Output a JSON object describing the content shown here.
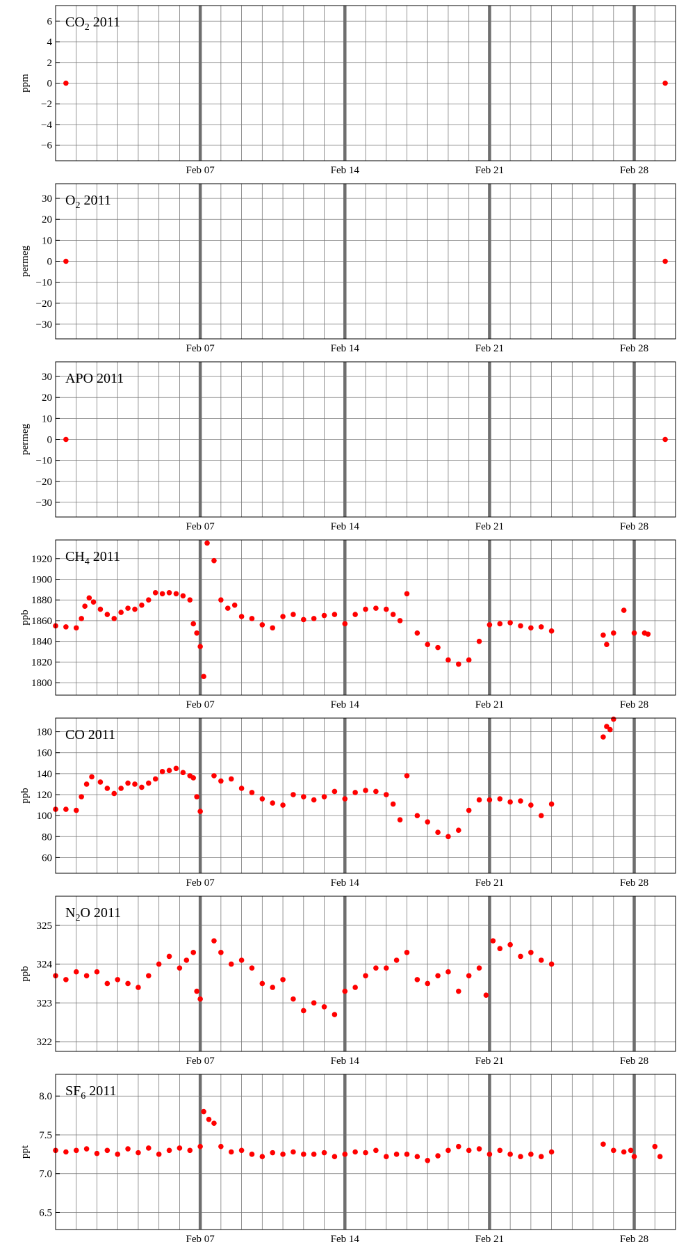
{
  "colors": {
    "point": "#ff0000",
    "errorbar": "#4040c0",
    "grid": "#7a7a7a",
    "week_line": "#6e6e6e",
    "frame": "#000000"
  },
  "chart_data": [
    {
      "type": "scatter",
      "title": "CO₂ 2011",
      "title_main": "CO",
      "title_sub": "2",
      "title_tail": " 2011",
      "ylabel": "ppm",
      "ylim": [
        -7.5,
        7.5
      ],
      "yticks": [
        -6,
        -4,
        -2,
        0,
        2,
        4,
        6
      ],
      "ytick_labels": [
        "−6",
        "−4",
        "−2",
        "0",
        "2",
        "4",
        "6"
      ],
      "xlim": [
        "2011-01-31",
        "2011-03-02"
      ],
      "xticks": [
        "2011-02-07",
        "2011-02-14",
        "2011-02-21",
        "2011-02-28"
      ],
      "xtick_labels": [
        "Feb 07",
        "Feb 14",
        "Feb 21",
        "Feb 28"
      ],
      "grid": true,
      "points": [
        {
          "x": "2011-01-31 12:00",
          "y": 0
        },
        {
          "x": "2011-03-01 12:00",
          "y": 0
        }
      ]
    },
    {
      "type": "scatter",
      "title": "O₂ 2011",
      "title_main": "O",
      "title_sub": "2",
      "title_tail": " 2011",
      "ylabel": "permeg",
      "ylim": [
        -37,
        37
      ],
      "yticks": [
        -30,
        -20,
        -10,
        0,
        10,
        20,
        30
      ],
      "ytick_labels": [
        "−30",
        "−20",
        "−10",
        "0",
        "10",
        "20",
        "30"
      ],
      "xlim": [
        "2011-01-31",
        "2011-03-02"
      ],
      "xticks": [
        "2011-02-07",
        "2011-02-14",
        "2011-02-21",
        "2011-02-28"
      ],
      "xtick_labels": [
        "Feb 07",
        "Feb 14",
        "Feb 21",
        "Feb 28"
      ],
      "grid": true,
      "points": [
        {
          "x": "2011-01-31 12:00",
          "y": 0
        },
        {
          "x": "2011-03-01 12:00",
          "y": 0
        }
      ]
    },
    {
      "type": "scatter",
      "title": "APO 2011",
      "title_main": "APO",
      "title_sub": "",
      "title_tail": " 2011",
      "ylabel": "permeg",
      "ylim": [
        -37,
        37
      ],
      "yticks": [
        -30,
        -20,
        -10,
        0,
        10,
        20,
        30
      ],
      "ytick_labels": [
        "−30",
        "−20",
        "−10",
        "0",
        "10",
        "20",
        "30"
      ],
      "xlim": [
        "2011-01-31",
        "2011-03-02"
      ],
      "xticks": [
        "2011-02-07",
        "2011-02-14",
        "2011-02-21",
        "2011-02-28"
      ],
      "xtick_labels": [
        "Feb 07",
        "Feb 14",
        "Feb 21",
        "Feb 28"
      ],
      "grid": true,
      "points": [
        {
          "x": "2011-01-31 12:00",
          "y": 0
        },
        {
          "x": "2011-03-01 12:00",
          "y": 0
        }
      ]
    },
    {
      "type": "scatter",
      "title": "CH₄ 2011",
      "title_main": "CH",
      "title_sub": "4",
      "title_tail": " 2011",
      "ylabel": "ppb",
      "ylim": [
        1788,
        1938
      ],
      "yticks": [
        1800,
        1820,
        1840,
        1860,
        1880,
        1900,
        1920
      ],
      "ytick_labels": [
        "1800",
        "1820",
        "1840",
        "1860",
        "1880",
        "1900",
        "1920"
      ],
      "xlim": [
        "2011-01-31",
        "2011-03-02"
      ],
      "xticks": [
        "2011-02-07",
        "2011-02-14",
        "2011-02-21",
        "2011-02-28"
      ],
      "xtick_labels": [
        "Feb 07",
        "Feb 14",
        "Feb 21",
        "Feb 28"
      ],
      "grid": true,
      "series": [
        {
          "x": [
            "2011-01-31 00:00",
            "2011-01-31 12:00",
            "2011-02-01 00:00",
            "2011-02-01 06:00",
            "2011-02-01 10:00",
            "2011-02-01 15:00",
            "2011-02-01 20:00",
            "2011-02-02 04:00",
            "2011-02-02 12:00",
            "2011-02-02 20:00",
            "2011-02-03 04:00",
            "2011-02-03 12:00",
            "2011-02-03 20:00",
            "2011-02-04 04:00",
            "2011-02-04 12:00",
            "2011-02-04 20:00",
            "2011-02-05 04:00",
            "2011-02-05 12:00",
            "2011-02-05 20:00",
            "2011-02-06 04:00",
            "2011-02-06 12:00",
            "2011-02-06 16:00",
            "2011-02-06 20:00",
            "2011-02-07 00:00",
            "2011-02-07 04:00",
            "2011-02-07 08:00",
            "2011-02-07 16:00",
            "2011-02-08 00:00",
            "2011-02-08 08:00",
            "2011-02-08 16:00",
            "2011-02-09 00:00",
            "2011-02-09 12:00",
            "2011-02-10 00:00",
            "2011-02-10 12:00",
            "2011-02-11 00:00",
            "2011-02-11 12:00",
            "2011-02-12 00:00",
            "2011-02-12 12:00",
            "2011-02-13 00:00",
            "2011-02-13 12:00",
            "2011-02-14 00:00",
            "2011-02-14 12:00",
            "2011-02-15 00:00",
            "2011-02-15 12:00",
            "2011-02-16 00:00",
            "2011-02-16 08:00",
            "2011-02-16 16:00",
            "2011-02-17 00:00",
            "2011-02-17 12:00",
            "2011-02-18 00:00",
            "2011-02-18 12:00",
            "2011-02-19 00:00",
            "2011-02-19 12:00",
            "2011-02-20 00:00",
            "2011-02-20 12:00",
            "2011-02-21 00:00",
            "2011-02-21 12:00",
            "2011-02-22 00:00",
            "2011-02-22 12:00",
            "2011-02-23 00:00",
            "2011-02-23 12:00",
            "2011-02-24 00:00",
            "2011-02-26 12:00",
            "2011-02-26 16:00",
            "2011-02-27 00:00",
            "2011-02-27 12:00",
            "2011-02-28 00:00",
            "2011-02-28 12:00",
            "2011-02-28 16:00"
          ],
          "y": [
            1855,
            1854,
            1853,
            1862,
            1874,
            1882,
            1878,
            1871,
            1866,
            1862,
            1868,
            1872,
            1871,
            1875,
            1880,
            1887,
            1886,
            1887,
            1886,
            1884,
            1880,
            1857,
            1848,
            1835,
            1806,
            1935,
            1918,
            1880,
            1872,
            1875,
            1864,
            1862,
            1856,
            1853,
            1864,
            1866,
            1861,
            1862,
            1865,
            1866,
            1857,
            1866,
            1871,
            1872,
            1871,
            1866,
            1860,
            1886,
            1848,
            1837,
            1834,
            1822,
            1818,
            1822,
            1840,
            1856,
            1857,
            1858,
            1855,
            1853,
            1854,
            1850,
            1846,
            1837,
            1848,
            1870,
            1848,
            1848,
            1847
          ]
        }
      ]
    },
    {
      "type": "scatter",
      "title": "CO 2011",
      "title_main": "CO",
      "title_sub": "",
      "title_tail": " 2011",
      "ylabel": "ppb",
      "ylim": [
        45,
        193
      ],
      "yticks": [
        60,
        80,
        100,
        120,
        140,
        160,
        180
      ],
      "ytick_labels": [
        "60",
        "80",
        "100",
        "120",
        "140",
        "160",
        "180"
      ],
      "xlim": [
        "2011-01-31",
        "2011-03-02"
      ],
      "xticks": [
        "2011-02-07",
        "2011-02-14",
        "2011-02-21",
        "2011-02-28"
      ],
      "xtick_labels": [
        "Feb 07",
        "Feb 14",
        "Feb 21",
        "Feb 28"
      ],
      "grid": true,
      "series": [
        {
          "x": [
            "2011-01-31 00:00",
            "2011-01-31 12:00",
            "2011-02-01 00:00",
            "2011-02-01 06:00",
            "2011-02-01 12:00",
            "2011-02-01 18:00",
            "2011-02-02 04:00",
            "2011-02-02 12:00",
            "2011-02-02 20:00",
            "2011-02-03 04:00",
            "2011-02-03 12:00",
            "2011-02-03 20:00",
            "2011-02-04 04:00",
            "2011-02-04 12:00",
            "2011-02-04 20:00",
            "2011-02-05 04:00",
            "2011-02-05 12:00",
            "2011-02-05 20:00",
            "2011-02-06 04:00",
            "2011-02-06 12:00",
            "2011-02-06 16:00",
            "2011-02-06 20:00",
            "2011-02-07 00:00",
            "2011-02-07 16:00",
            "2011-02-08 00:00",
            "2011-02-08 12:00",
            "2011-02-09 00:00",
            "2011-02-09 12:00",
            "2011-02-10 00:00",
            "2011-02-10 12:00",
            "2011-02-11 00:00",
            "2011-02-11 12:00",
            "2011-02-12 00:00",
            "2011-02-12 12:00",
            "2011-02-13 00:00",
            "2011-02-13 12:00",
            "2011-02-14 00:00",
            "2011-02-14 12:00",
            "2011-02-15 00:00",
            "2011-02-15 12:00",
            "2011-02-16 00:00",
            "2011-02-16 08:00",
            "2011-02-16 16:00",
            "2011-02-17 00:00",
            "2011-02-17 12:00",
            "2011-02-18 00:00",
            "2011-02-18 12:00",
            "2011-02-19 00:00",
            "2011-02-19 12:00",
            "2011-02-20 00:00",
            "2011-02-20 12:00",
            "2011-02-21 00:00",
            "2011-02-21 12:00",
            "2011-02-22 00:00",
            "2011-02-22 12:00",
            "2011-02-23 00:00",
            "2011-02-23 12:00",
            "2011-02-24 00:00",
            "2011-02-26 12:00",
            "2011-02-26 16:00",
            "2011-02-26 20:00",
            "2011-02-27 00:00"
          ],
          "y": [
            106,
            106,
            105,
            118,
            130,
            137,
            132,
            126,
            121,
            126,
            131,
            130,
            127,
            131,
            135,
            142,
            143,
            145,
            141,
            138,
            136,
            118,
            104,
            138,
            133,
            135,
            126,
            122,
            116,
            112,
            110,
            120,
            118,
            115,
            118,
            123,
            116,
            122,
            124,
            123,
            120,
            111,
            96,
            138,
            100,
            94,
            84,
            80,
            86,
            105,
            115,
            115,
            116,
            113,
            114,
            110,
            100,
            111,
            175,
            185,
            182,
            192
          ]
        }
      ]
    },
    {
      "type": "scatter",
      "title": "N₂O 2011",
      "title_main": "N",
      "title_sub": "2",
      "title_tail": "O 2011",
      "ylabel": "ppb",
      "ylim": [
        321.75,
        325.75
      ],
      "yticks": [
        322,
        323,
        324,
        325
      ],
      "ytick_labels": [
        "322",
        "323",
        "324",
        "325"
      ],
      "xlim": [
        "2011-01-31",
        "2011-03-02"
      ],
      "xticks": [
        "2011-02-07",
        "2011-02-14",
        "2011-02-21",
        "2011-02-28"
      ],
      "xtick_labels": [
        "Feb 07",
        "Feb 14",
        "Feb 21",
        "Feb 28"
      ],
      "grid": true,
      "series": [
        {
          "x": [
            "2011-01-31 00:00",
            "2011-01-31 12:00",
            "2011-02-01 00:00",
            "2011-02-01 12:00",
            "2011-02-02 00:00",
            "2011-02-02 12:00",
            "2011-02-03 00:00",
            "2011-02-03 12:00",
            "2011-02-04 00:00",
            "2011-02-04 12:00",
            "2011-02-05 00:00",
            "2011-02-05 12:00",
            "2011-02-06 00:00",
            "2011-02-06 08:00",
            "2011-02-06 16:00",
            "2011-02-06 20:00",
            "2011-02-07 00:00",
            "2011-02-07 16:00",
            "2011-02-08 00:00",
            "2011-02-08 12:00",
            "2011-02-09 00:00",
            "2011-02-09 12:00",
            "2011-02-10 00:00",
            "2011-02-10 12:00",
            "2011-02-11 00:00",
            "2011-02-11 12:00",
            "2011-02-12 00:00",
            "2011-02-12 12:00",
            "2011-02-13 00:00",
            "2011-02-13 12:00",
            "2011-02-14 00:00",
            "2011-02-14 12:00",
            "2011-02-15 00:00",
            "2011-02-15 12:00",
            "2011-02-16 00:00",
            "2011-02-16 12:00",
            "2011-02-17 00:00",
            "2011-02-17 12:00",
            "2011-02-18 00:00",
            "2011-02-18 12:00",
            "2011-02-19 00:00",
            "2011-02-19 12:00",
            "2011-02-20 00:00",
            "2011-02-20 12:00",
            "2011-02-20 20:00",
            "2011-02-21 04:00",
            "2011-02-21 12:00",
            "2011-02-22 00:00",
            "2011-02-22 12:00",
            "2011-02-23 00:00",
            "2011-02-23 12:00",
            "2011-02-24 00:00"
          ],
          "y": [
            323.7,
            323.6,
            323.8,
            323.7,
            323.8,
            323.5,
            323.6,
            323.5,
            323.4,
            323.7,
            324.0,
            324.2,
            323.9,
            324.1,
            324.3,
            323.3,
            323.1,
            324.6,
            324.3,
            324.0,
            324.1,
            323.9,
            323.5,
            323.4,
            323.6,
            323.1,
            322.8,
            323.0,
            322.9,
            322.7,
            323.3,
            323.4,
            323.7,
            323.9,
            323.9,
            324.1,
            324.3,
            323.6,
            323.5,
            323.7,
            323.8,
            323.3,
            323.7,
            323.9,
            323.2,
            324.6,
            324.4,
            324.5,
            324.2,
            324.3,
            324.1,
            324.0
          ]
        }
      ]
    },
    {
      "type": "scatter",
      "title": "SF₆ 2011",
      "title_main": "SF",
      "title_sub": "6",
      "title_tail": " 2011",
      "ylabel": "ppt",
      "ylim": [
        6.28,
        8.28
      ],
      "yticks": [
        6.5,
        7.0,
        7.5,
        8.0
      ],
      "ytick_labels": [
        "6.5",
        "7.0",
        "7.5",
        "8.0"
      ],
      "xlim": [
        "2011-01-31",
        "2011-03-02"
      ],
      "xticks": [
        "2011-02-07",
        "2011-02-14",
        "2011-02-21",
        "2011-02-28"
      ],
      "xtick_labels": [
        "Feb 07",
        "Feb 14",
        "Feb 21",
        "Feb 28"
      ],
      "grid": true,
      "series": [
        {
          "x": [
            "2011-01-31 00:00",
            "2011-01-31 12:00",
            "2011-02-01 00:00",
            "2011-02-01 12:00",
            "2011-02-02 00:00",
            "2011-02-02 12:00",
            "2011-02-03 00:00",
            "2011-02-03 12:00",
            "2011-02-04 00:00",
            "2011-02-04 12:00",
            "2011-02-05 00:00",
            "2011-02-05 12:00",
            "2011-02-06 00:00",
            "2011-02-06 12:00",
            "2011-02-07 00:00",
            "2011-02-07 04:00",
            "2011-02-07 10:00",
            "2011-02-07 16:00",
            "2011-02-08 00:00",
            "2011-02-08 12:00",
            "2011-02-09 00:00",
            "2011-02-09 12:00",
            "2011-02-10 00:00",
            "2011-02-10 12:00",
            "2011-02-11 00:00",
            "2011-02-11 12:00",
            "2011-02-12 00:00",
            "2011-02-12 12:00",
            "2011-02-13 00:00",
            "2011-02-13 12:00",
            "2011-02-14 00:00",
            "2011-02-14 12:00",
            "2011-02-15 00:00",
            "2011-02-15 12:00",
            "2011-02-16 00:00",
            "2011-02-16 12:00",
            "2011-02-17 00:00",
            "2011-02-17 12:00",
            "2011-02-18 00:00",
            "2011-02-18 12:00",
            "2011-02-19 00:00",
            "2011-02-19 12:00",
            "2011-02-20 00:00",
            "2011-02-20 12:00",
            "2011-02-21 00:00",
            "2011-02-21 12:00",
            "2011-02-22 00:00",
            "2011-02-22 12:00",
            "2011-02-23 00:00",
            "2011-02-23 12:00",
            "2011-02-24 00:00",
            "2011-02-26 12:00",
            "2011-02-27 00:00",
            "2011-02-27 12:00",
            "2011-02-27 20:00",
            "2011-02-28 00:00",
            "2011-03-01 00:00",
            "2011-03-01 06:00"
          ],
          "y": [
            7.3,
            7.28,
            7.3,
            7.32,
            7.26,
            7.3,
            7.25,
            7.32,
            7.27,
            7.33,
            7.25,
            7.3,
            7.33,
            7.3,
            7.35,
            7.8,
            7.7,
            7.65,
            7.35,
            7.28,
            7.3,
            7.25,
            7.22,
            7.27,
            7.25,
            7.28,
            7.25,
            7.25,
            7.27,
            7.22,
            7.25,
            7.28,
            7.27,
            7.3,
            7.22,
            7.25,
            7.25,
            7.22,
            7.17,
            7.23,
            7.3,
            7.35,
            7.3,
            7.32,
            7.25,
            7.3,
            7.25,
            7.22,
            7.25,
            7.22,
            7.28,
            7.38,
            7.3,
            7.28,
            7.3,
            7.22,
            7.35,
            7.22
          ]
        }
      ]
    }
  ]
}
